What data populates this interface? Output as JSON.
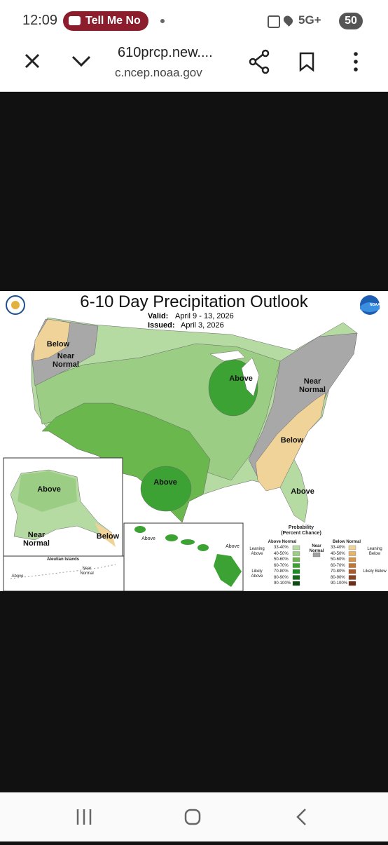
{
  "status_bar": {
    "time": "12:09",
    "notification": "Tell Me No",
    "network": "5G+",
    "battery": "50"
  },
  "browser_bar": {
    "title": "610prcp.new....",
    "url": "c.ncep.noaa.gov"
  },
  "map": {
    "title": "6-10 Day Precipitation Outlook",
    "valid_label": "Valid:",
    "valid_dates": "April 9 - 13, 2026",
    "issued_label": "Issued:",
    "issued_date": "April 3, 2026",
    "noaa": "NOAA",
    "region_labels": [
      "Below",
      "Near Normal",
      "Above",
      "Near Normal",
      "Below",
      "Above",
      "Above"
    ],
    "alaska_labels": [
      "Above",
      "Below",
      "Near Normal"
    ],
    "aleutian": {
      "title": "Aleutian Islands",
      "labels": [
        "Above",
        "Near Normal"
      ]
    },
    "hawaii_labels": [
      "Above",
      "Above"
    ],
    "legend": {
      "title": "Probability",
      "subtitle": "(Percent Chance)",
      "above_header": "Above Normal",
      "near_header": "Near Normal",
      "below_header": "Below Normal",
      "leaning_above": "Leaning Above",
      "likely_above": "Likely Above",
      "leaning_below": "Leaning Below",
      "likely_below": "Likely Below",
      "above_ranges": [
        "33-40%",
        "40-50%",
        "50-60%",
        "60-70%",
        "70-80%",
        "80-90%",
        "90-100%"
      ],
      "below_ranges": [
        "33-40%",
        "40-50%",
        "50-60%",
        "60-70%",
        "70-80%",
        "80-90%",
        "90-100%"
      ],
      "above_colors": [
        "#b5dba3",
        "#9bcd84",
        "#6ab74e",
        "#3ca234",
        "#1e8a25",
        "#146b1a",
        "#0b4a10"
      ],
      "below_colors": [
        "#f0d399",
        "#e3b46b",
        "#d4964b",
        "#c07538",
        "#a85a2c",
        "#8c4322",
        "#6b2d18"
      ],
      "near_color": "#a0a0a0"
    }
  }
}
